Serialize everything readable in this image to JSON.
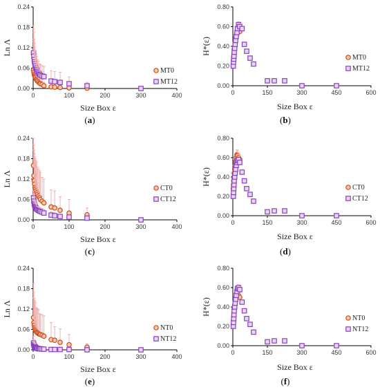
{
  "colors": {
    "t0": "#cc4a1c",
    "t12": "#8a3fc2",
    "errbar": "#f0b0b0",
    "axis": "#000000"
  },
  "chart_data": [
    {
      "type": "scatter",
      "panel": "(a)",
      "xlabel": "Size Box ε",
      "ylabel": "Ln Λ",
      "xlim": [
        0,
        400
      ],
      "ylim": [
        0,
        0.24
      ],
      "xticks": [
        0,
        100,
        200,
        300,
        400
      ],
      "yticks": [
        0.0,
        0.06,
        0.12,
        0.18,
        0.24
      ],
      "legend_position": "right",
      "series": [
        {
          "name": "MT0",
          "marker": "circle",
          "x": [
            1,
            2,
            3,
            4,
            5,
            6,
            8,
            10,
            12,
            15,
            18,
            20,
            25,
            30,
            50,
            60,
            75,
            100,
            150,
            300
          ],
          "y": [
            0.055,
            0.048,
            0.042,
            0.038,
            0.035,
            0.032,
            0.028,
            0.025,
            0.022,
            0.019,
            0.016,
            0.014,
            0.012,
            0.008,
            0.005,
            0.004,
            0.003,
            0.002,
            0.001,
            0.0
          ],
          "err": [
            0.12,
            0.09,
            0.07,
            0.06,
            0.05,
            0.04,
            0.035,
            0.03,
            0.025,
            0.02,
            0.02,
            0.015,
            0.015,
            0.01,
            0.01,
            0.01,
            0.008,
            0.006,
            0.004,
            0.0
          ]
        },
        {
          "name": "MT12",
          "marker": "square",
          "x": [
            1,
            2,
            3,
            4,
            5,
            6,
            8,
            10,
            12,
            15,
            18,
            20,
            25,
            30,
            50,
            60,
            75,
            100,
            150,
            300
          ],
          "y": [
            0.105,
            0.095,
            0.085,
            0.078,
            0.072,
            0.066,
            0.06,
            0.055,
            0.05,
            0.046,
            0.042,
            0.04,
            0.037,
            0.035,
            0.022,
            0.02,
            0.018,
            0.014,
            0.008,
            0.0
          ],
          "err": [
            0.08,
            0.07,
            0.06,
            0.055,
            0.05,
            0.045,
            0.04,
            0.04,
            0.035,
            0.035,
            0.03,
            0.03,
            0.03,
            0.03,
            0.03,
            0.03,
            0.03,
            0.02,
            0.01,
            0.0
          ]
        }
      ]
    },
    {
      "type": "scatter",
      "panel": "(b)",
      "xlabel": "Size Box ε",
      "ylabel": "H*(ε)",
      "xlim": [
        0,
        600
      ],
      "ylim": [
        0,
        0.8
      ],
      "xticks": [
        0,
        150,
        300,
        450,
        600
      ],
      "yticks": [
        0.0,
        0.2,
        0.4,
        0.6,
        0.8
      ],
      "legend_position": "right",
      "series": [
        {
          "name": "MT0",
          "marker": "circle",
          "x": [
            2,
            3,
            4,
            5,
            6,
            8,
            10,
            12,
            15,
            18,
            20,
            25,
            30
          ],
          "y": [
            0.22,
            0.26,
            0.3,
            0.33,
            0.37,
            0.4,
            0.44,
            0.48,
            0.5,
            0.53,
            0.56,
            0.58,
            0.55
          ],
          "err": [
            0.03,
            0.03,
            0.04,
            0.04,
            0.04,
            0.05,
            0.05,
            0.05,
            0.06,
            0.06,
            0.06,
            0.06,
            0.05
          ]
        },
        {
          "name": "MT12",
          "marker": "square",
          "x": [
            2,
            3,
            4,
            5,
            6,
            8,
            10,
            12,
            15,
            18,
            20,
            25,
            30,
            40,
            50,
            60,
            75,
            90,
            150,
            180,
            225,
            300,
            450
          ],
          "y": [
            0.2,
            0.24,
            0.27,
            0.3,
            0.34,
            0.38,
            0.42,
            0.46,
            0.5,
            0.54,
            0.58,
            0.62,
            0.6,
            0.58,
            0.42,
            0.35,
            0.28,
            0.22,
            0.05,
            0.05,
            0.05,
            0.0,
            0.0
          ],
          "err": [
            0.02,
            0.02,
            0.02,
            0.02,
            0.02,
            0.03,
            0.03,
            0.03,
            0.03,
            0.03,
            0.03,
            0.03,
            0.03,
            0.02,
            0.02,
            0.02,
            0.02,
            0.02,
            0.01,
            0.01,
            0.01,
            0.0,
            0.0
          ]
        }
      ]
    },
    {
      "type": "scatter",
      "panel": "(c)",
      "xlabel": "Size Box ε",
      "ylabel": "Ln Λ",
      "xlim": [
        0,
        400
      ],
      "ylim": [
        0,
        0.24
      ],
      "xticks": [
        0,
        100,
        200,
        300,
        400
      ],
      "yticks": [
        0.0,
        0.06,
        0.12,
        0.18,
        0.24
      ],
      "legend_position": "right",
      "series": [
        {
          "name": "CT0",
          "marker": "circle",
          "x": [
            1,
            2,
            3,
            4,
            5,
            6,
            8,
            10,
            12,
            15,
            18,
            20,
            25,
            30,
            50,
            60,
            75,
            100,
            150,
            300
          ],
          "y": [
            0.16,
            0.13,
            0.115,
            0.105,
            0.095,
            0.09,
            0.085,
            0.08,
            0.075,
            0.07,
            0.065,
            0.06,
            0.055,
            0.05,
            0.038,
            0.035,
            0.028,
            0.02,
            0.015,
            0.0
          ],
          "err": [
            0.08,
            0.09,
            0.09,
            0.09,
            0.09,
            0.09,
            0.09,
            0.09,
            0.08,
            0.08,
            0.08,
            0.08,
            0.07,
            0.07,
            0.05,
            0.05,
            0.04,
            0.04,
            0.02,
            0.0
          ]
        },
        {
          "name": "CT12",
          "marker": "square",
          "x": [
            1,
            2,
            3,
            4,
            5,
            6,
            8,
            10,
            12,
            15,
            18,
            20,
            25,
            30,
            50,
            60,
            75,
            100,
            150,
            300
          ],
          "y": [
            0.065,
            0.055,
            0.048,
            0.044,
            0.04,
            0.038,
            0.035,
            0.032,
            0.03,
            0.028,
            0.026,
            0.025,
            0.023,
            0.02,
            0.014,
            0.012,
            0.01,
            0.008,
            0.005,
            0.0
          ],
          "err": [
            0.02,
            0.02,
            0.02,
            0.015,
            0.015,
            0.015,
            0.015,
            0.015,
            0.01,
            0.01,
            0.01,
            0.01,
            0.01,
            0.01,
            0.01,
            0.01,
            0.005,
            0.005,
            0.005,
            0.0
          ]
        }
      ]
    },
    {
      "type": "scatter",
      "panel": "(d)",
      "xlabel": "Size Box ε",
      "ylabel": "H*(ε)",
      "xlim": [
        0,
        600
      ],
      "ylim": [
        0,
        0.8
      ],
      "xticks": [
        0,
        150,
        300,
        450,
        600
      ],
      "yticks": [
        0.0,
        0.2,
        0.4,
        0.6,
        0.8
      ],
      "legend_position": "right",
      "series": [
        {
          "name": "CT0",
          "marker": "circle",
          "x": [
            2,
            3,
            4,
            5,
            6,
            8,
            10,
            12,
            15,
            18,
            20,
            25,
            30
          ],
          "y": [
            0.28,
            0.32,
            0.36,
            0.4,
            0.44,
            0.48,
            0.52,
            0.56,
            0.6,
            0.63,
            0.62,
            0.6,
            0.58
          ],
          "err": [
            0.03,
            0.03,
            0.04,
            0.04,
            0.04,
            0.05,
            0.05,
            0.05,
            0.05,
            0.05,
            0.05,
            0.05,
            0.05
          ]
        },
        {
          "name": "CT12",
          "marker": "square",
          "x": [
            2,
            3,
            4,
            5,
            6,
            8,
            10,
            12,
            15,
            18,
            20,
            25,
            30,
            40,
            50,
            60,
            75,
            90,
            150,
            180,
            225,
            300,
            450
          ],
          "y": [
            0.2,
            0.24,
            0.28,
            0.32,
            0.36,
            0.4,
            0.44,
            0.48,
            0.52,
            0.55,
            0.57,
            0.58,
            0.55,
            0.45,
            0.36,
            0.28,
            0.22,
            0.15,
            0.04,
            0.05,
            0.05,
            0.0,
            0.0
          ],
          "err": [
            0.02,
            0.02,
            0.02,
            0.02,
            0.02,
            0.03,
            0.03,
            0.03,
            0.03,
            0.03,
            0.03,
            0.03,
            0.03,
            0.02,
            0.02,
            0.02,
            0.02,
            0.02,
            0.01,
            0.01,
            0.01,
            0.0,
            0.0
          ]
        }
      ]
    },
    {
      "type": "scatter",
      "panel": "(e)",
      "xlabel": "Size Box ε",
      "ylabel": "Ln Λ",
      "xlim": [
        0,
        400
      ],
      "ylim": [
        0,
        0.24
      ],
      "xticks": [
        0,
        100,
        200,
        300,
        400
      ],
      "yticks": [
        0.0,
        0.06,
        0.12,
        0.18,
        0.24
      ],
      "legend_position": "right",
      "series": [
        {
          "name": "NT0",
          "marker": "circle",
          "x": [
            1,
            2,
            3,
            4,
            5,
            6,
            8,
            10,
            12,
            15,
            18,
            20,
            25,
            30,
            50,
            60,
            75,
            100,
            150,
            300
          ],
          "y": [
            0.095,
            0.08,
            0.072,
            0.066,
            0.062,
            0.058,
            0.055,
            0.052,
            0.05,
            0.048,
            0.046,
            0.045,
            0.043,
            0.04,
            0.03,
            0.028,
            0.022,
            0.015,
            0.008,
            0.0
          ],
          "err": [
            0.1,
            0.09,
            0.08,
            0.08,
            0.08,
            0.08,
            0.07,
            0.07,
            0.07,
            0.07,
            0.06,
            0.06,
            0.06,
            0.06,
            0.05,
            0.04,
            0.04,
            0.03,
            0.01,
            0.0
          ]
        },
        {
          "name": "NT12",
          "marker": "square",
          "x": [
            1,
            2,
            3,
            4,
            5,
            6,
            8,
            10,
            12,
            15,
            18,
            20,
            25,
            30,
            50,
            60,
            75,
            100,
            150,
            300
          ],
          "y": [
            0.02,
            0.015,
            0.012,
            0.01,
            0.009,
            0.008,
            0.006,
            0.005,
            0.004,
            0.003,
            0.003,
            0.003,
            0.002,
            0.002,
            0.001,
            0.001,
            0.001,
            0.001,
            0.0,
            0.0
          ],
          "err": [
            0.02,
            0.015,
            0.01,
            0.01,
            0.01,
            0.008,
            0.006,
            0.005,
            0.004,
            0.003,
            0.003,
            0.003,
            0.002,
            0.002,
            0.001,
            0.001,
            0.001,
            0.001,
            0.0,
            0.0
          ]
        }
      ]
    },
    {
      "type": "scatter",
      "panel": "(f)",
      "xlabel": "Size Box ε",
      "ylabel": "H*(ε)",
      "xlim": [
        0,
        600
      ],
      "ylim": [
        0,
        0.8
      ],
      "xticks": [
        0,
        150,
        300,
        450,
        600
      ],
      "yticks": [
        0.0,
        0.2,
        0.4,
        0.6,
        0.8
      ],
      "legend_position": "right",
      "series": [
        {
          "name": "NT0",
          "marker": "circle",
          "x": [
            2,
            3,
            4,
            5,
            6,
            8,
            10,
            12,
            15,
            18,
            20,
            25,
            30
          ],
          "y": [
            0.22,
            0.26,
            0.3,
            0.34,
            0.38,
            0.42,
            0.45,
            0.48,
            0.5,
            0.52,
            0.54,
            0.52,
            0.5
          ],
          "err": [
            0.03,
            0.03,
            0.04,
            0.04,
            0.04,
            0.05,
            0.05,
            0.05,
            0.05,
            0.05,
            0.05,
            0.05,
            0.05
          ]
        },
        {
          "name": "NT12",
          "marker": "square",
          "x": [
            2,
            3,
            4,
            5,
            6,
            8,
            10,
            12,
            15,
            18,
            20,
            25,
            30,
            40,
            50,
            60,
            75,
            90,
            150,
            180,
            225,
            300,
            450
          ],
          "y": [
            0.2,
            0.24,
            0.28,
            0.32,
            0.36,
            0.4,
            0.44,
            0.48,
            0.52,
            0.56,
            0.59,
            0.6,
            0.58,
            0.45,
            0.36,
            0.28,
            0.22,
            0.14,
            0.04,
            0.05,
            0.05,
            0.0,
            0.0
          ],
          "err": [
            0.02,
            0.02,
            0.02,
            0.02,
            0.02,
            0.03,
            0.03,
            0.03,
            0.03,
            0.03,
            0.03,
            0.03,
            0.03,
            0.02,
            0.02,
            0.02,
            0.02,
            0.02,
            0.01,
            0.01,
            0.01,
            0.0,
            0.0
          ]
        }
      ]
    }
  ]
}
